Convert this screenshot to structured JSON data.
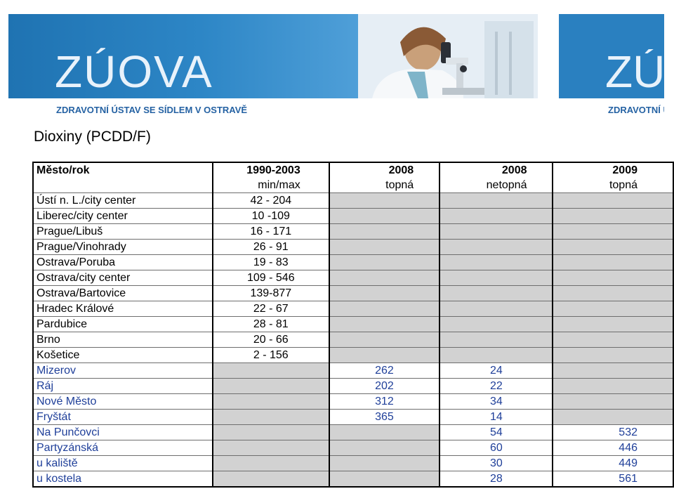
{
  "header": {
    "logo": "ZÚOVA",
    "subtitle": "ZDRAVOTNÍ ÚSTAV SE SÍDLEM V OSTRAVĚ",
    "logo_right": "ZÚ",
    "subtitle_right": "ZDRAVOTNÍ Ú"
  },
  "title": "Dioxiny (PCDD/F)",
  "table": {
    "headers": [
      "Město/rok",
      "1990-2003",
      "2008",
      "2008",
      "2009"
    ],
    "subheaders": [
      "",
      "min/max",
      "topná",
      "netopná",
      "topná"
    ],
    "rows": [
      {
        "city": "Ústí n. L./city center",
        "range": "42 - 204",
        "h2008": "",
        "n2008": "",
        "h2009": ""
      },
      {
        "city": "Liberec/city center",
        "range": "10 -109",
        "h2008": "",
        "n2008": "",
        "h2009": ""
      },
      {
        "city": "Prague/Libuš",
        "range": "16 - 171",
        "h2008": "",
        "n2008": "",
        "h2009": ""
      },
      {
        "city": "Prague/Vinohrady",
        "range": "26 - 91",
        "h2008": "",
        "n2008": "",
        "h2009": ""
      },
      {
        "city": "Ostrava/Poruba",
        "range": "19 - 83",
        "h2008": "",
        "n2008": "",
        "h2009": ""
      },
      {
        "city": "Ostrava/city center",
        "range": "109 - 546",
        "h2008": "",
        "n2008": "",
        "h2009": ""
      },
      {
        "city": "Ostrava/Bartovice",
        "range": "139-877",
        "h2008": "",
        "n2008": "",
        "h2009": ""
      },
      {
        "city": "Hradec Králové",
        "range": "22 - 67",
        "h2008": "",
        "n2008": "",
        "h2009": ""
      },
      {
        "city": "Pardubice",
        "range": "28 - 81",
        "h2008": "",
        "n2008": "",
        "h2009": ""
      },
      {
        "city": "Brno",
        "range": "20 - 66",
        "h2008": "",
        "n2008": "",
        "h2009": ""
      },
      {
        "city": "Košetice",
        "range": "2 - 156",
        "h2008": "",
        "n2008": "",
        "h2009": ""
      },
      {
        "city": "Mizerov",
        "range": "",
        "h2008": "262",
        "n2008": "24",
        "h2009": ""
      },
      {
        "city": "Ráj",
        "range": "",
        "h2008": "202",
        "n2008": "22",
        "h2009": ""
      },
      {
        "city": "Nové Město",
        "range": "",
        "h2008": "312",
        "n2008": "34",
        "h2009": ""
      },
      {
        "city": "Fryštát",
        "range": "",
        "h2008": "365",
        "n2008": "14",
        "h2009": ""
      },
      {
        "city": "Na Punčovci",
        "range": "",
        "h2008": "",
        "n2008": "54",
        "h2009": "532"
      },
      {
        "city": "Partyzánská",
        "range": "",
        "h2008": "",
        "n2008": "60",
        "h2009": "446"
      },
      {
        "city": "u kaliště",
        "range": "",
        "h2008": "",
        "n2008": "30",
        "h2009": "449"
      },
      {
        "city": "u kostela",
        "range": "",
        "h2008": "",
        "n2008": "28",
        "h2009": "561"
      }
    ]
  },
  "colors": {
    "gray_cell": "#d2d2d2",
    "row_text_blue": "#1f3f99",
    "banner_blue": "#1f73b2"
  }
}
